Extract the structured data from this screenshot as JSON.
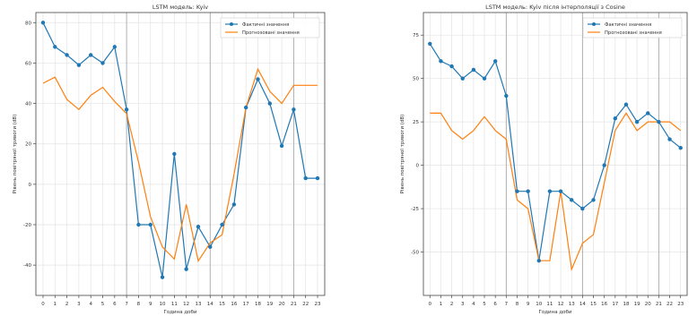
{
  "chart_data": [
    {
      "type": "line",
      "title": "LSTM модель: Kyiv",
      "xlabel": "Година доби",
      "ylabel": "Рівень повітряної тривоги (dB)",
      "x": [
        0,
        1,
        2,
        3,
        4,
        5,
        6,
        7,
        8,
        9,
        10,
        11,
        12,
        13,
        14,
        15,
        16,
        17,
        18,
        19,
        20,
        21,
        22,
        23
      ],
      "ylim": [
        -55,
        85
      ],
      "yticks": [
        -40,
        -20,
        0,
        20,
        40,
        60,
        80
      ],
      "vlines": [
        7,
        14,
        21
      ],
      "grid": true,
      "legend_position": "top-right",
      "series": [
        {
          "name": "Фактичні значення",
          "color": "#1f77b4",
          "marker": true,
          "values": [
            80,
            68,
            64,
            59,
            64,
            60,
            68,
            37,
            -20,
            -20,
            -46,
            15,
            -42,
            -21,
            -31,
            -20,
            -10,
            38,
            52,
            40,
            19,
            37,
            3,
            3
          ]
        },
        {
          "name": "Прогнозовані значення",
          "color": "#ff7f0e",
          "marker": false,
          "values": [
            50,
            53,
            42,
            37,
            44,
            48,
            41,
            35,
            11,
            -16,
            -31,
            -37,
            -10,
            -38,
            -29,
            -25,
            5,
            38,
            57,
            46,
            40,
            49,
            49,
            49
          ]
        }
      ]
    },
    {
      "type": "line",
      "title": "LSTM модель: Kyiv після інтерполяції з Cosine",
      "xlabel": "Година доби",
      "ylabel": "Рівень повітряної тривоги (dB)",
      "x": [
        0,
        1,
        2,
        3,
        4,
        5,
        6,
        7,
        8,
        9,
        10,
        11,
        12,
        13,
        14,
        15,
        16,
        17,
        18,
        19,
        20,
        21,
        22,
        23
      ],
      "ylim": [
        -75,
        88
      ],
      "yticks": [
        -50,
        -25,
        0,
        25,
        50,
        75
      ],
      "vlines": [
        7,
        14,
        21
      ],
      "grid": true,
      "legend_position": "top-right",
      "series": [
        {
          "name": "Фактичні значення",
          "color": "#1f77b4",
          "marker": true,
          "values": [
            70,
            60,
            57,
            50,
            55,
            50,
            60,
            40,
            -15,
            -15,
            -55,
            -15,
            -15,
            -20,
            -25,
            -20,
            0,
            27,
            35,
            25,
            30,
            25,
            15,
            10
          ]
        },
        {
          "name": "Прогнозовані значення",
          "color": "#ff7f0e",
          "marker": false,
          "values": [
            30,
            30,
            20,
            15,
            20,
            28,
            20,
            15,
            -20,
            -25,
            -55,
            -55,
            -15,
            -60,
            -45,
            -40,
            -10,
            20,
            30,
            20,
            25,
            25,
            25,
            20
          ]
        }
      ]
    }
  ]
}
